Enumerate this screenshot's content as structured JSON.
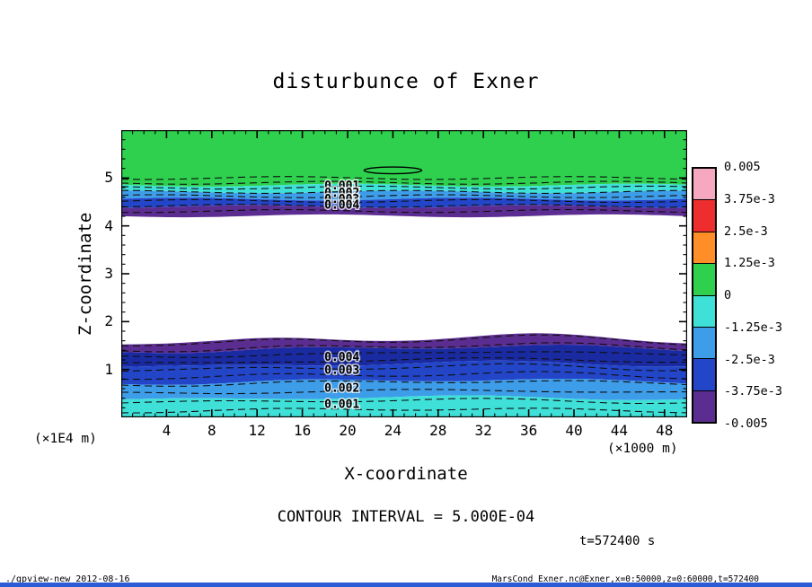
{
  "window": {
    "bg": "#ffffff",
    "bottom_strip_color": "#2b5cd6"
  },
  "footer": {
    "left": "./gpview-new  2012-08-16",
    "right": "MarsCond_Exner.nc@Exner,x=0:50000,z=0:60000,t=572400"
  },
  "chart_data": {
    "type": "heatmap",
    "title": "disturbunce of Exner",
    "xlabel": "X-coordinate",
    "ylabel": "Z-coordinate",
    "x_axis_unit": "(×1000 m)",
    "y_axis_unit": "(×1E4 m)",
    "contour_interval_label": "CONTOUR INTERVAL = 5.000E-04",
    "time_label": "t=572400 s",
    "xlim": [
      0,
      50
    ],
    "zlim": [
      0,
      6
    ],
    "x_ticks": [
      4,
      8,
      12,
      16,
      20,
      24,
      28,
      32,
      36,
      40,
      44,
      48
    ],
    "x_minor_step": 1,
    "z_ticks": [
      1,
      2,
      3,
      4,
      5
    ],
    "z_minor_step": 0.2,
    "colorbar": {
      "tick_labels": [
        "0.005",
        "3.75e-3",
        "2.5e-3",
        "1.25e-3",
        "0",
        "-1.25e-3",
        "-2.5e-3",
        "-3.75e-3",
        "-0.005"
      ],
      "segment_colors": [
        "#f5a8c0",
        "#ee2e2e",
        "#ff8e28",
        "#2ed04e",
        "#3fe0d8",
        "#3e9de8",
        "#2345c8",
        "#5c2d91"
      ]
    },
    "band_stacks": [
      {
        "name": "upper",
        "boundaries_z": [
          6.0,
          4.85,
          4.71,
          4.56,
          4.4,
          4.21
        ],
        "colors": [
          "#2ed04e",
          "#3fe0d8",
          "#3e9de8",
          "#2345c8",
          "#5c2d91"
        ]
      },
      {
        "name": "lower",
        "boundaries_z": [
          1.58,
          1.39,
          1.07,
          0.73,
          0.39,
          0.0
        ],
        "colors": [
          "#5c2d91",
          "#1a2aa0",
          "#2345c8",
          "#3e9de8",
          "#3fe0d8"
        ]
      }
    ],
    "contour_lines": {
      "upper_z": [
        5.0,
        4.9,
        4.8,
        4.71,
        4.62,
        4.52,
        4.42,
        4.31
      ],
      "lower_z": [
        1.55,
        1.42,
        1.28,
        1.14,
        1.0,
        0.85,
        0.7,
        0.52,
        0.33,
        0.15
      ]
    },
    "contour_labels": {
      "upper": [
        {
          "text": "0.001",
          "x": 19.5,
          "z": 4.85
        },
        {
          "text": "0.002",
          "x": 19.5,
          "z": 4.7
        },
        {
          "text": "0.003",
          "x": 19.5,
          "z": 4.57
        },
        {
          "text": "0.004",
          "x": 19.5,
          "z": 4.44
        }
      ],
      "lower": [
        {
          "text": "0.004",
          "x": 19.5,
          "z": 1.27
        },
        {
          "text": "0.003",
          "x": 19.5,
          "z": 0.99
        },
        {
          "text": "0.002",
          "x": 19.5,
          "z": 0.62
        },
        {
          "text": "0.001",
          "x": 19.5,
          "z": 0.28
        }
      ]
    },
    "zero_contour": {
      "x": 24.0,
      "z": 5.16,
      "rx": 2.55,
      "rz": 0.07
    }
  }
}
